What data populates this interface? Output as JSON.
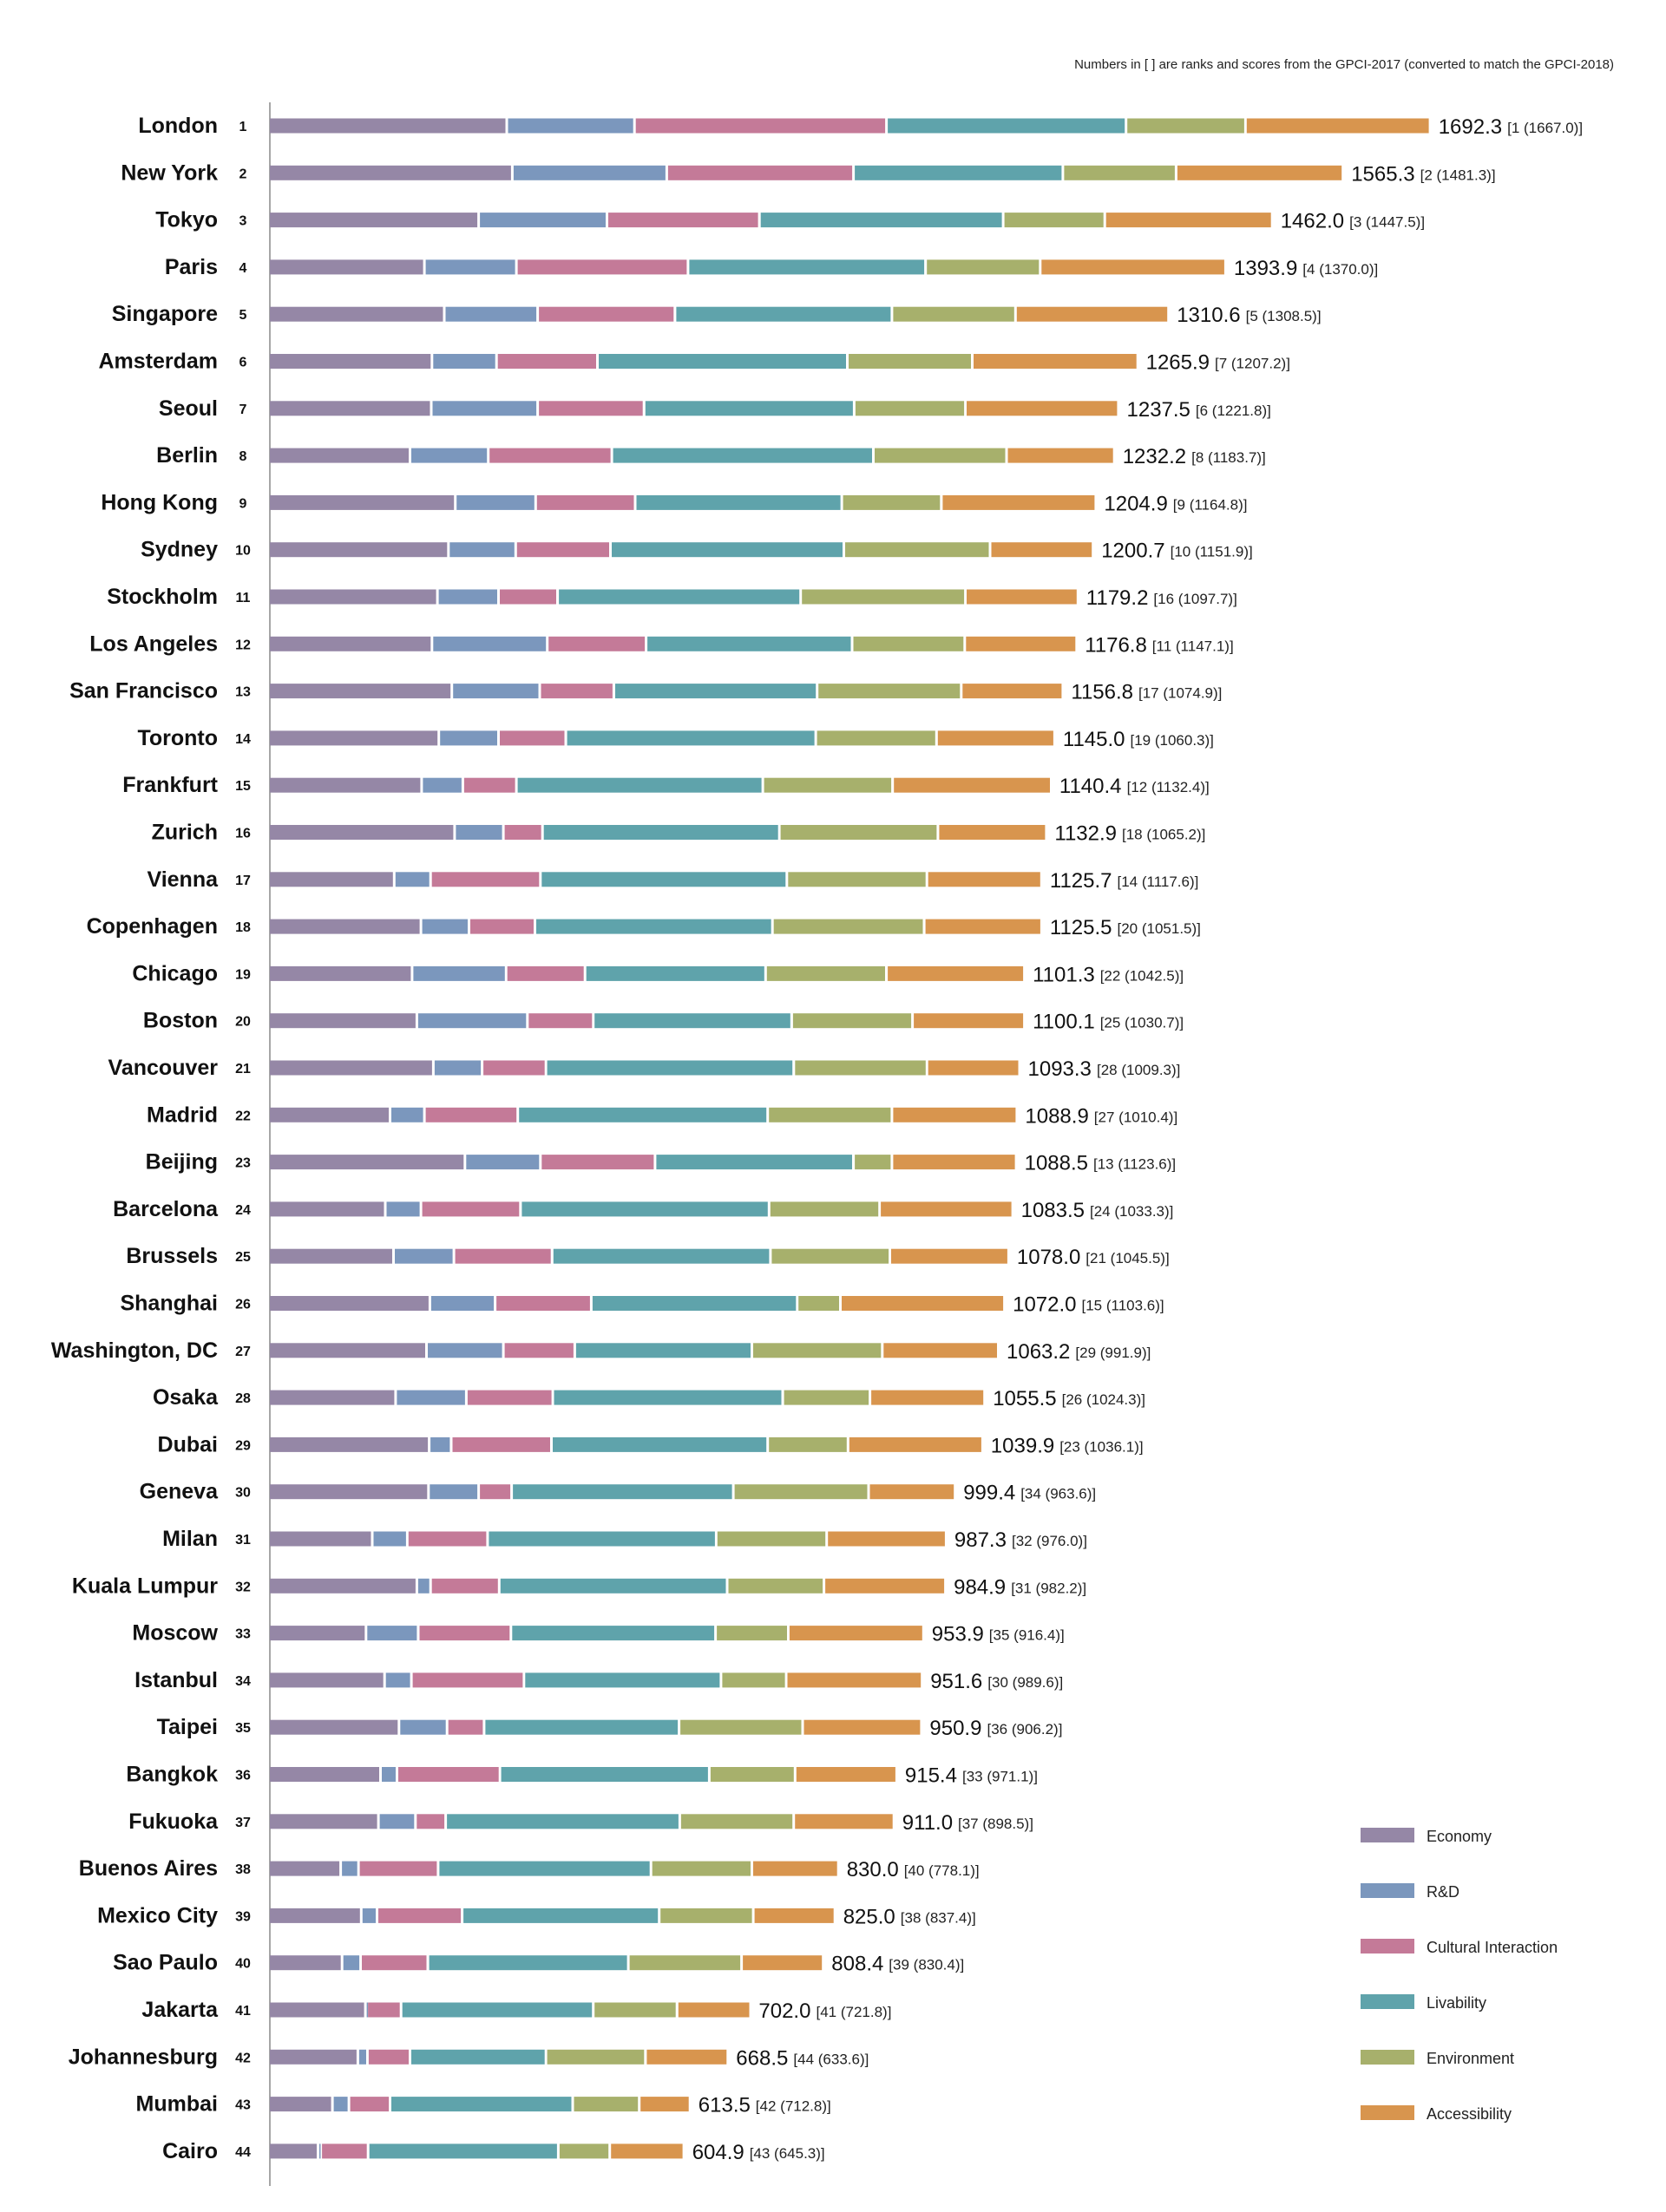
{
  "note": "Numbers in [ ] are ranks and scores from the GPCI-2017 (converted to match the GPCI-2018)",
  "chart_data": {
    "type": "bar",
    "orientation": "horizontal",
    "stacked": true,
    "xlim": [
      0,
      1700
    ],
    "categories": [
      "London",
      "New York",
      "Tokyo",
      "Paris",
      "Singapore",
      "Amsterdam",
      "Seoul",
      "Berlin",
      "Hong Kong",
      "Sydney",
      "Stockholm",
      "Los Angeles",
      "San Francisco",
      "Toronto",
      "Frankfurt",
      "Zurich",
      "Vienna",
      "Copenhagen",
      "Chicago",
      "Boston",
      "Vancouver",
      "Madrid",
      "Beijing",
      "Barcelona",
      "Brussels",
      "Shanghai",
      "Washington, DC",
      "Osaka",
      "Dubai",
      "Geneva",
      "Milan",
      "Kuala Lumpur",
      "Moscow",
      "Istanbul",
      "Taipei",
      "Bangkok",
      "Fukuoka",
      "Buenos Aires",
      "Mexico City",
      "Sao Paulo",
      "Jakarta",
      "Johannesburg",
      "Mumbai",
      "Cairo"
    ],
    "ranks": [
      "1",
      "2",
      "3",
      "4",
      "5",
      "6",
      "7",
      "8",
      "9",
      "10",
      "11",
      "12",
      "13",
      "14",
      "15",
      "16",
      "17",
      "18",
      "19",
      "20",
      "21",
      "22",
      "23",
      "24",
      "25",
      "26",
      "27",
      "28",
      "29",
      "30",
      "31",
      "32",
      "33",
      "34",
      "35",
      "36",
      "37",
      "38",
      "39",
      "40",
      "41",
      "42",
      "43",
      "44"
    ],
    "totals": [
      "1692.3",
      "1565.3",
      "1462.0",
      "1393.9",
      "1310.6",
      "1265.9",
      "1237.5",
      "1232.2",
      "1204.9",
      "1200.7",
      "1179.2",
      "1176.8",
      "1156.8",
      "1145.0",
      "1140.4",
      "1132.9",
      "1125.7",
      "1125.5",
      "1101.3",
      "1100.1",
      "1093.3",
      "1088.9",
      "1088.5",
      "1083.5",
      "1078.0",
      "1072.0",
      "1063.2",
      "1055.5",
      "1039.9",
      "999.4",
      "987.3",
      "984.9",
      "953.9",
      "951.6",
      "950.9",
      "915.4",
      "911.0",
      "830.0",
      "825.0",
      "808.4",
      "702.0",
      "668.5",
      "613.5",
      "604.9"
    ],
    "previous": [
      "[1 (1667.0)]",
      "[2 (1481.3)]",
      "[3 (1447.5)]",
      "[4 (1370.0)]",
      "[5 (1308.5)]",
      "[7 (1207.2)]",
      "[6 (1221.8)]",
      "[8 (1183.7)]",
      "[9 (1164.8)]",
      "[10 (1151.9)]",
      "[16 (1097.7)]",
      "[11 (1147.1)]",
      "[17 (1074.9)]",
      "[19 (1060.3)]",
      "[12 (1132.4)]",
      "[18 (1065.2)]",
      "[14 (1117.6)]",
      "[20 (1051.5)]",
      "[22 (1042.5)]",
      "[25 (1030.7)]",
      "[28 (1009.3)]",
      "[27 (1010.4)]",
      "[13 (1123.6)]",
      "[24 (1033.3)]",
      "[21 (1045.5)]",
      "[15 (1103.6)]",
      "[29 (991.9)]",
      "[26 (1024.3)]",
      "[23 (1036.1)]",
      "[34 (963.6)]",
      "[32 (976.0)]",
      "[31 (982.2)]",
      "[35 (916.4)]",
      "[30 (989.6)]",
      "[36 (906.2)]",
      "[33 (971.1)]",
      "[37 (898.5)]",
      "[40 (778.1)]",
      "[38 (837.4)]",
      "[39 (830.4)]",
      "[41 (721.8)]",
      "[44 (633.6)]",
      "[42 (712.8)]",
      "[43 (645.3)]"
    ],
    "series": [
      {
        "name": "Economy",
        "color": "#9587a6",
        "values": [
          347,
          355,
          306,
          227,
          256,
          238,
          237,
          206,
          272,
          262,
          246,
          238,
          267,
          248,
          223,
          271,
          183,
          222,
          209,
          216,
          240,
          177,
          286,
          170,
          182,
          235,
          230,
          185,
          234,
          233,
          151,
          216,
          142,
          169,
          190,
          163,
          160,
          105,
          135,
          107,
          141,
          130,
          93,
          72
        ]
      },
      {
        "name": "R&D",
        "color": "#7b97bd",
        "values": [
          186,
          225,
          187,
          134,
          136,
          94,
          155,
          114,
          117,
          98,
          89,
          168,
          128,
          87,
          60,
          71,
          53,
          70,
          137,
          161,
          71,
          50,
          110,
          52,
          88,
          95,
          112,
          103,
          32,
          73,
          51,
          20,
          76,
          39,
          70,
          24,
          54,
          26,
          23,
          27,
          2,
          14,
          24,
          4
        ]
      },
      {
        "name": "Cultural Interaction",
        "color": "#c47a98",
        "values": [
          367,
          272,
          222,
          250,
          200,
          147,
          155,
          180,
          145,
          138,
          86,
          144,
          108,
          98,
          78,
          57,
          160,
          96,
          115,
          96,
          93,
          136,
          167,
          145,
          143,
          140,
          104,
          126,
          146,
          48,
          117,
          100,
          135,
          164,
          54,
          150,
          44,
          116,
          124,
          98,
          50,
          62,
          60,
          69
        ]
      },
      {
        "name": "Livability",
        "color": "#5fa3ab",
        "values": [
          349,
          305,
          355,
          346,
          316,
          364,
          306,
          381,
          301,
          340,
          354,
          300,
          296,
          364,
          359,
          345,
          359,
          346,
          263,
          289,
          361,
          364,
          289,
          362,
          318,
          300,
          258,
          335,
          315,
          323,
          333,
          332,
          298,
          287,
          284,
          305,
          341,
          310,
          287,
          292,
          280,
          198,
          266,
          277
        ]
      },
      {
        "name": "Environment",
        "color": "#a7b06c",
        "values": [
          174,
          165,
          148,
          167,
          180,
          182,
          162,
          194,
          145,
          213,
          240,
          164,
          210,
          176,
          189,
          231,
          204,
          221,
          176,
          176,
          194,
          181,
          56,
          161,
          174,
          63,
          190,
          127,
          117,
          197,
          161,
          141,
          106,
          95,
          180,
          125,
          166,
          147,
          137,
          165,
          122,
          145,
          97,
          75
        ]
      },
      {
        "name": "Accessibility",
        "color": "#d8954e",
        "values": [
          269,
          243,
          244,
          270,
          223,
          241,
          223,
          157,
          225,
          150,
          164,
          163,
          148,
          172,
          231,
          158,
          167,
          171,
          201,
          163,
          135,
          182,
          181,
          194,
          173,
          239,
          169,
          167,
          196,
          126,
          174,
          177,
          197,
          198,
          173,
          148,
          146,
          126,
          119,
          119,
          107,
          120,
          74,
          108
        ]
      }
    ]
  }
}
